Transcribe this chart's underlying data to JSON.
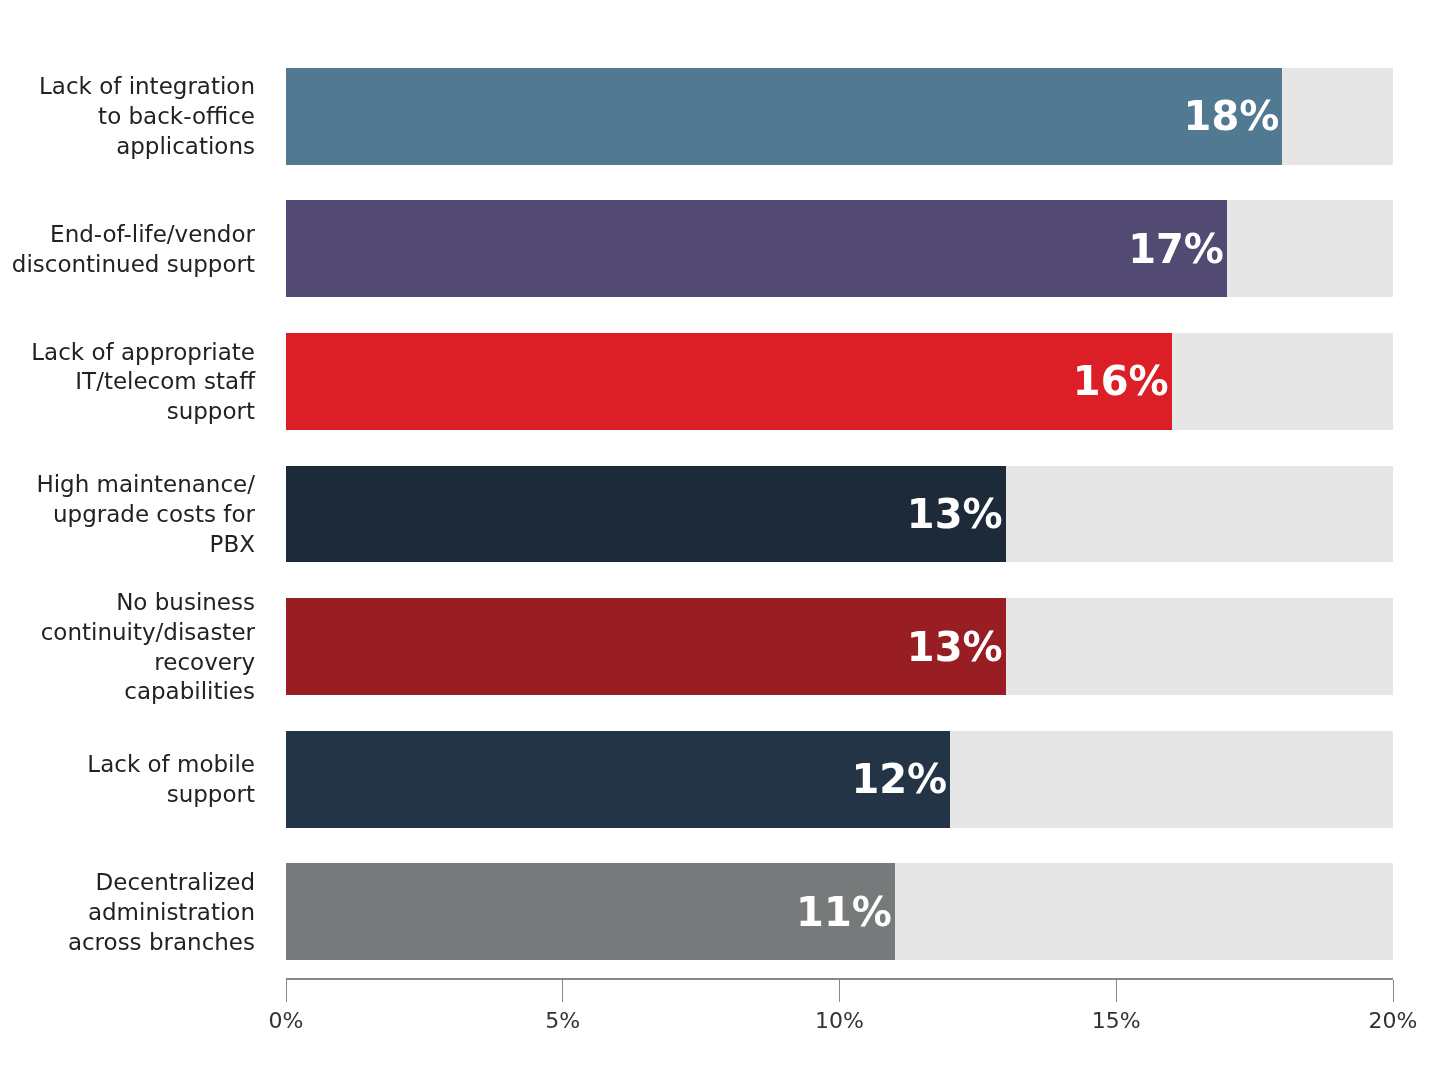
{
  "chart_data": {
    "type": "bar",
    "orientation": "horizontal",
    "stacked": true,
    "categories": [
      "Lack of integration to back-office applications",
      "End-of-life/vendor discontinued support",
      "Lack of appropriate IT/telecom staff support",
      "High maintenance/ upgrade costs for PBX",
      "No business continuity/disaster recovery capabilities",
      "Lack of mobile support",
      "Decentralized administration across branches"
    ],
    "series": [
      {
        "colors": [
          "#517a92",
          "#524a72",
          "#dc1f26",
          "#1c2a39",
          "#981e24",
          "#233446",
          "#777a7a"
        ],
        "values": [
          18,
          17,
          16,
          13,
          13,
          12,
          11
        ],
        "value_labels": [
          "18%",
          "17%",
          "16%",
          "13%",
          "13%",
          "12%",
          "11%"
        ]
      },
      {
        "color": "#e5e6e5",
        "values": [
          2,
          3,
          4,
          7,
          7,
          8,
          9
        ]
      }
    ],
    "xlim": [
      0,
      20
    ],
    "xticks": [
      {
        "value": 0,
        "label": "0%"
      },
      {
        "value": 5,
        "label": "5%"
      },
      {
        "value": 10,
        "label": "10%"
      },
      {
        "value": 15,
        "label": "15%"
      },
      {
        "value": 20,
        "label": "20%"
      }
    ]
  }
}
